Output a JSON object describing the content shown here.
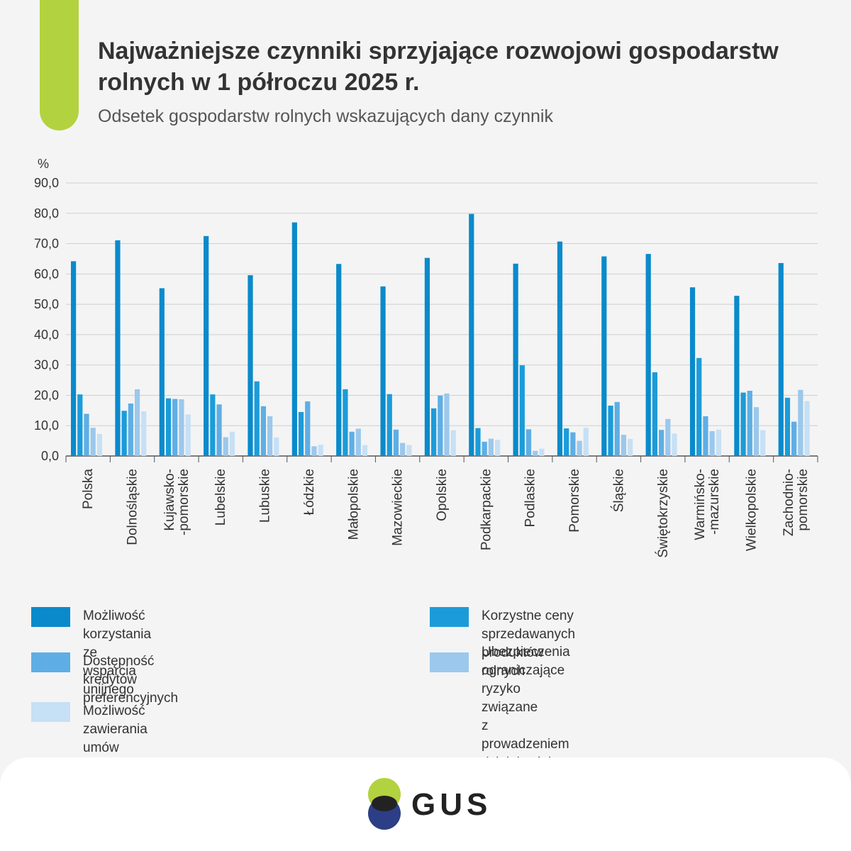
{
  "header": {
    "title": "Najważniejsze czynniki sprzyjające rozwojowi gospodarstw rolnych w 1 półroczu 2025 r.",
    "subtitle": "Odsetek gospodarstw rolnych wskazujących dany czynnik"
  },
  "chart_data": {
    "type": "bar",
    "title": "Najważniejsze czynniki sprzyjające rozwojowi gospodarstw rolnych w 1 półroczu 2025 r.",
    "subtitle": "Odsetek gospodarstw rolnych wskazujących dany czynnik",
    "ylabel": "%",
    "xlabel": "",
    "ylim": [
      0,
      90
    ],
    "yticks": [
      "0,0",
      "10,0",
      "20,0",
      "30,0",
      "40,0",
      "50,0",
      "60,0",
      "70,0",
      "80,0",
      "90,0"
    ],
    "grid": true,
    "legend_position": "bottom",
    "categories": [
      "Polska",
      "Dolnośląskie",
      "Kujawsko-\n-pomorskie",
      "Lubelskie",
      "Lubuskie",
      "Łódzkie",
      "Małopolskie",
      "Mazowieckie",
      "Opolskie",
      "Podkarpackie",
      "Podlaskie",
      "Pomorskie",
      "Śląskie",
      "Świętokrzyskie",
      "Warmińsko-\n-mazurskie",
      "Wielkopolskie",
      "Zachodnio-\npomorskie"
    ],
    "series": [
      {
        "name": "Możliwość korzystania ze wsparcia unijnego",
        "color": "#0a8acb",
        "values": [
          64.2,
          71.1,
          55.3,
          72.5,
          59.6,
          77.0,
          63.3,
          55.9,
          65.3,
          79.8,
          63.4,
          70.7,
          65.8,
          66.6,
          55.6,
          52.8,
          63.6
        ]
      },
      {
        "name": "Korzystne ceny sprzedawanych produktów rolnych",
        "color": "#1b9cd9",
        "values": [
          20.3,
          14.9,
          19.0,
          20.3,
          24.6,
          14.5,
          22.0,
          20.4,
          15.7,
          9.2,
          29.9,
          9.1,
          16.6,
          27.6,
          32.3,
          20.9,
          19.2
        ]
      },
      {
        "name": "Dostępność kredytów preferencyjnych",
        "color": "#5eaee5",
        "values": [
          13.9,
          17.3,
          18.8,
          17.0,
          16.4,
          18.0,
          8.0,
          8.7,
          19.9,
          4.7,
          8.8,
          7.8,
          17.8,
          8.6,
          13.1,
          21.5,
          11.3
        ]
      },
      {
        "name": "Ubezpieczenia ograniczające ryzyko związane\nz prowadzeniem działalności rolniczej",
        "color": "#9bc8ec",
        "values": [
          9.3,
          22.0,
          18.7,
          6.2,
          13.1,
          3.2,
          9.0,
          4.3,
          20.6,
          5.7,
          1.7,
          5.0,
          7.0,
          12.2,
          8.2,
          16.1,
          21.8
        ]
      },
      {
        "name": "Możliwość zawierania umów kontraktacyjnych",
        "color": "#c6e0f5",
        "values": [
          7.3,
          14.7,
          13.7,
          8.0,
          6.1,
          3.7,
          3.6,
          3.6,
          8.5,
          5.3,
          2.4,
          9.3,
          5.6,
          7.4,
          8.7,
          8.5,
          18.1
        ]
      }
    ]
  },
  "logo": {
    "text": "GUS"
  },
  "colors": {
    "accent": "#b3d23f",
    "logo_green": "#b3d23f",
    "logo_navy": "#2c3e86"
  }
}
